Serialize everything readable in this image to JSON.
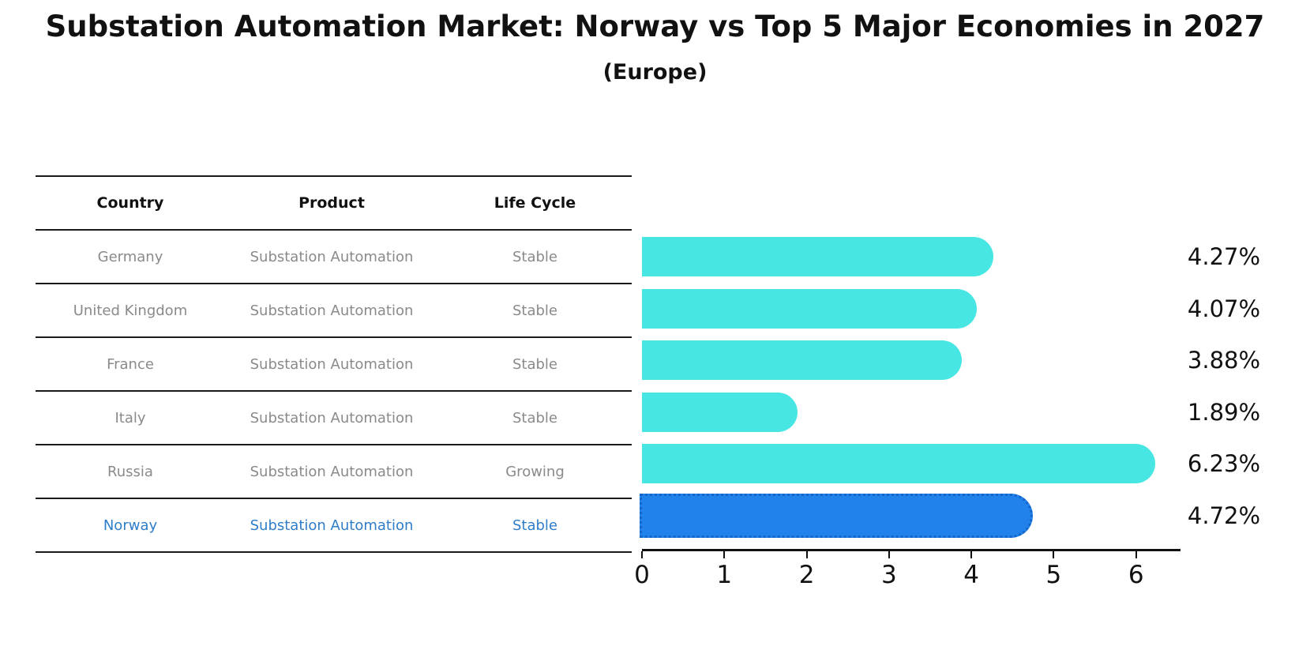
{
  "title": "Substation Automation Market: Norway vs Top 5 Major Economies in 2027",
  "subtitle": "(Europe)",
  "table": {
    "headers": [
      "Country",
      "Product",
      "Life Cycle"
    ],
    "rows": [
      {
        "country": "Germany",
        "product": "Substation Automation",
        "life_cycle": "Stable",
        "highlighted": false
      },
      {
        "country": "United Kingdom",
        "product": "Substation Automation",
        "life_cycle": "Stable",
        "highlighted": false
      },
      {
        "country": "France",
        "product": "Substation Automation",
        "life_cycle": "Stable",
        "highlighted": false
      },
      {
        "country": "Italy",
        "product": "Substation Automation",
        "life_cycle": "Stable",
        "highlighted": false
      },
      {
        "country": "Russia",
        "product": "Substation Automation",
        "life_cycle": "Growing",
        "highlighted": false
      },
      {
        "country": "Norway",
        "product": "Substation Automation",
        "life_cycle": "Stable",
        "highlighted": true
      }
    ]
  },
  "chart_data": {
    "type": "bar",
    "orientation": "horizontal",
    "categories": [
      "Germany",
      "United Kingdom",
      "France",
      "Italy",
      "Russia",
      "Norway"
    ],
    "values": [
      4.27,
      4.07,
      3.88,
      1.89,
      6.23,
      4.72
    ],
    "value_labels": [
      "4.27%",
      "4.07%",
      "3.88%",
      "1.89%",
      "6.23%",
      "4.72%"
    ],
    "xticks": [
      "0",
      "1",
      "2",
      "3",
      "4",
      "5",
      "6"
    ],
    "xlim": [
      0,
      6.54
    ],
    "grid": false,
    "bar_color": "#47e6e2",
    "highlight_bar_color": "#2182eb",
    "highlight_border_color": "#1465c8",
    "highlight_index": 5,
    "highlight_text_color": "#2e7dc9",
    "table_text_color": "#8a8a8a"
  }
}
